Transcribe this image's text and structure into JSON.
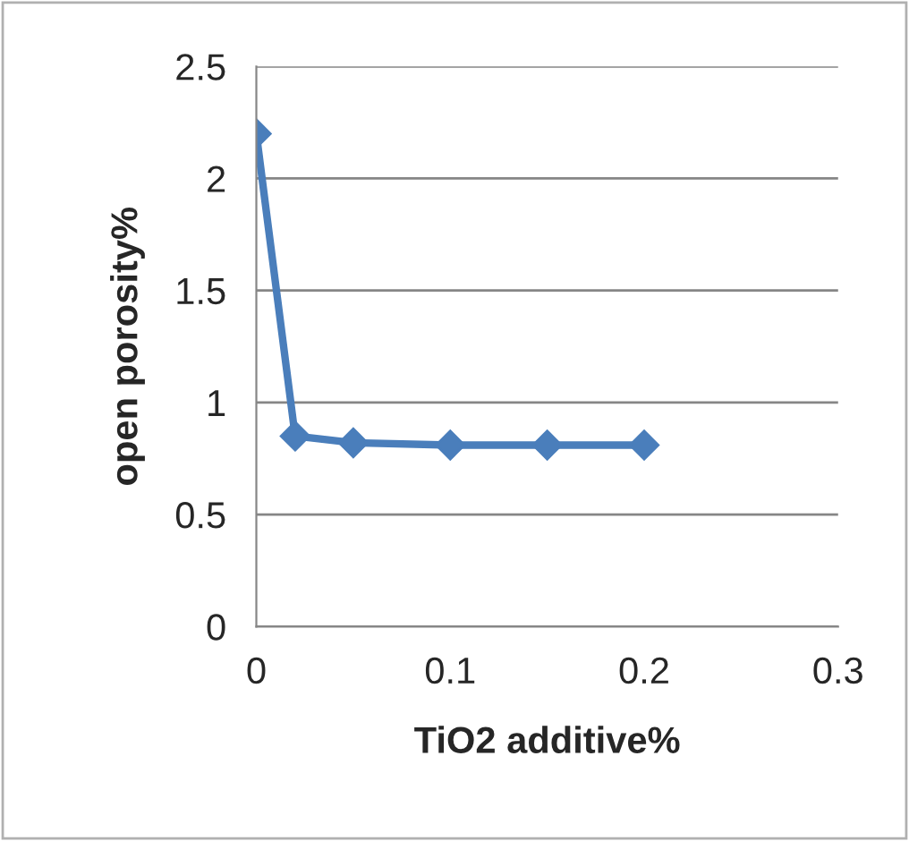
{
  "chart_data": {
    "type": "line",
    "xlabel": "TiO2 additive%",
    "ylabel": "open porosity%",
    "x": [
      0,
      0.02,
      0.05,
      0.1,
      0.15,
      0.2
    ],
    "series": [
      {
        "color": "#4a7ebb",
        "values": [
          2.2,
          0.85,
          0.82,
          0.81,
          0.81,
          0.81
        ]
      }
    ],
    "xlim": [
      0,
      0.3
    ],
    "xticks": [
      0,
      0.1,
      0.2,
      0.3
    ],
    "ylim": [
      0,
      2.5
    ],
    "yticks": [
      0,
      0.5,
      1,
      1.5,
      2,
      2.5
    ],
    "grid": "y",
    "marker": "diamond",
    "line_style": "solid",
    "legend": false
  }
}
